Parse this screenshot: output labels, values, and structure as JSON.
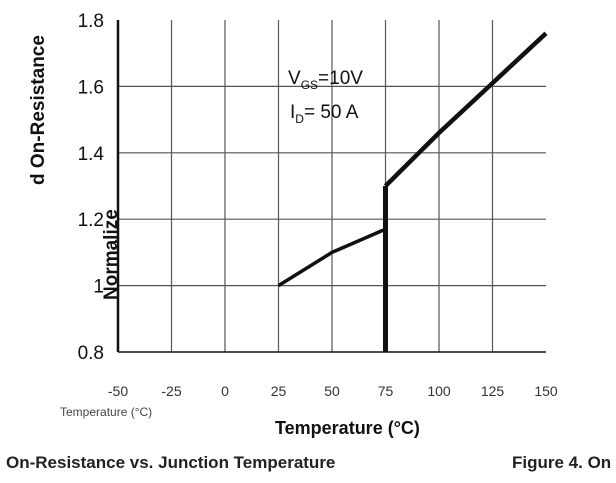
{
  "chart_data": {
    "type": "line",
    "title": "",
    "ylabel": "d On-Resistance",
    "ylabel_fragment": "Normalize",
    "xlabel": "Temperature (°C)",
    "x_sublabel": "Temperature (°C)",
    "caption": "On-Resistance vs. Junction Temperature",
    "caption_right": "Figure 4. On",
    "annotation": {
      "vgs_main": "V",
      "vgs_sub": "GS",
      "vgs_val": "=10V",
      "id_main": "I",
      "id_sub": "D",
      "id_val": "= 50 A"
    },
    "yticks": [
      "1.8",
      "1.6",
      "1.4",
      "1.2",
      "1",
      "0.8"
    ],
    "xticks": [
      "-50",
      "-25",
      "0",
      "25",
      "50",
      "75",
      "100",
      "125",
      "150"
    ],
    "xlim": [
      -50,
      150
    ],
    "ylim": [
      0.8,
      1.8
    ],
    "grid": true,
    "series": [
      {
        "x": [
          75,
          100,
          125,
          150
        ],
        "y": [
          1.3,
          1.46,
          1.61,
          1.76
        ]
      },
      {
        "x": [
          25,
          50,
          75
        ],
        "y": [
          1.0,
          1.1,
          1.17
        ]
      }
    ]
  }
}
